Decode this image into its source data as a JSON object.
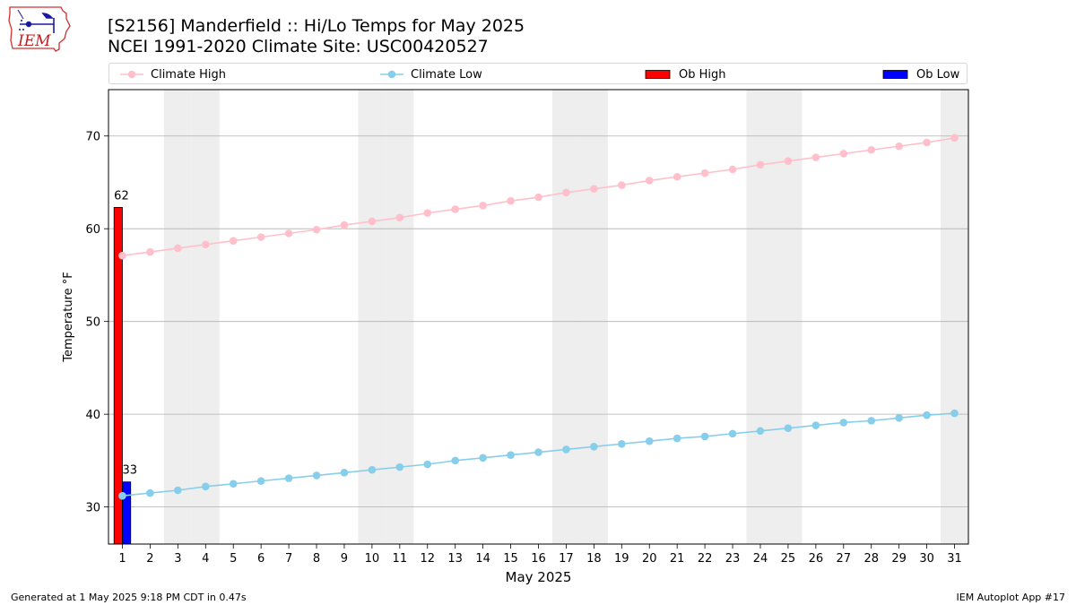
{
  "header": {
    "title_line1": "[S2156] Manderfield :: Hi/Lo Temps for May 2025",
    "title_line2": "NCEI 1991-2020 Climate Site: USC00420527",
    "logo_text": "IEM"
  },
  "footer": {
    "left": "Generated at 1 May 2025 9:18 PM CDT in 0.47s",
    "right": "IEM Autoplot App #17"
  },
  "colors": {
    "climate_high": "#ffc0cb",
    "climate_low": "#87ceeb",
    "ob_high": "#ff0000",
    "ob_low": "#0000ff",
    "weekend_shade": "#eeeeee",
    "grid": "#b0b0b0"
  },
  "chart_data": {
    "type": "bar",
    "xlabel": "May 2025",
    "ylabel": "Temperature °F",
    "xlim": [
      0.5,
      31.5
    ],
    "ylim": [
      26,
      75
    ],
    "x_ticks": [
      1,
      2,
      3,
      4,
      5,
      6,
      7,
      8,
      9,
      10,
      11,
      12,
      13,
      14,
      15,
      16,
      17,
      18,
      19,
      20,
      21,
      22,
      23,
      24,
      25,
      26,
      27,
      28,
      29,
      30,
      31
    ],
    "y_ticks": [
      30,
      40,
      50,
      60,
      70
    ],
    "grid": "y",
    "weekend_days": [
      3,
      4,
      10,
      11,
      17,
      18,
      24,
      25,
      31
    ],
    "legend": {
      "placement": "top",
      "entries": [
        "Climate High",
        "Climate Low",
        "Ob High",
        "Ob Low"
      ]
    },
    "series": [
      {
        "name": "Climate High",
        "kind": "line",
        "x": [
          1,
          2,
          3,
          4,
          5,
          6,
          7,
          8,
          9,
          10,
          11,
          12,
          13,
          14,
          15,
          16,
          17,
          18,
          19,
          20,
          21,
          22,
          23,
          24,
          25,
          26,
          27,
          28,
          29,
          30,
          31
        ],
        "values": [
          57.1,
          57.5,
          57.9,
          58.3,
          58.7,
          59.1,
          59.5,
          59.9,
          60.4,
          60.8,
          61.2,
          61.7,
          62.1,
          62.5,
          63.0,
          63.4,
          63.9,
          64.3,
          64.7,
          65.2,
          65.6,
          66.0,
          66.4,
          66.9,
          67.3,
          67.7,
          68.1,
          68.5,
          68.9,
          69.3,
          69.8
        ]
      },
      {
        "name": "Climate Low",
        "kind": "line",
        "x": [
          1,
          2,
          3,
          4,
          5,
          6,
          7,
          8,
          9,
          10,
          11,
          12,
          13,
          14,
          15,
          16,
          17,
          18,
          19,
          20,
          21,
          22,
          23,
          24,
          25,
          26,
          27,
          28,
          29,
          30,
          31
        ],
        "values": [
          31.2,
          31.5,
          31.8,
          32.2,
          32.5,
          32.8,
          33.1,
          33.4,
          33.7,
          34.0,
          34.3,
          34.6,
          35.0,
          35.3,
          35.6,
          35.9,
          36.2,
          36.5,
          36.8,
          37.1,
          37.4,
          37.6,
          37.9,
          38.2,
          38.5,
          38.8,
          39.1,
          39.3,
          39.6,
          39.9,
          40.1
        ]
      },
      {
        "name": "Ob High",
        "kind": "bar",
        "x": [
          1
        ],
        "values": [
          62.3
        ],
        "labels": [
          "62"
        ]
      },
      {
        "name": "Ob Low",
        "kind": "bar",
        "x": [
          1
        ],
        "values": [
          32.7
        ],
        "labels": [
          "33"
        ]
      }
    ]
  }
}
